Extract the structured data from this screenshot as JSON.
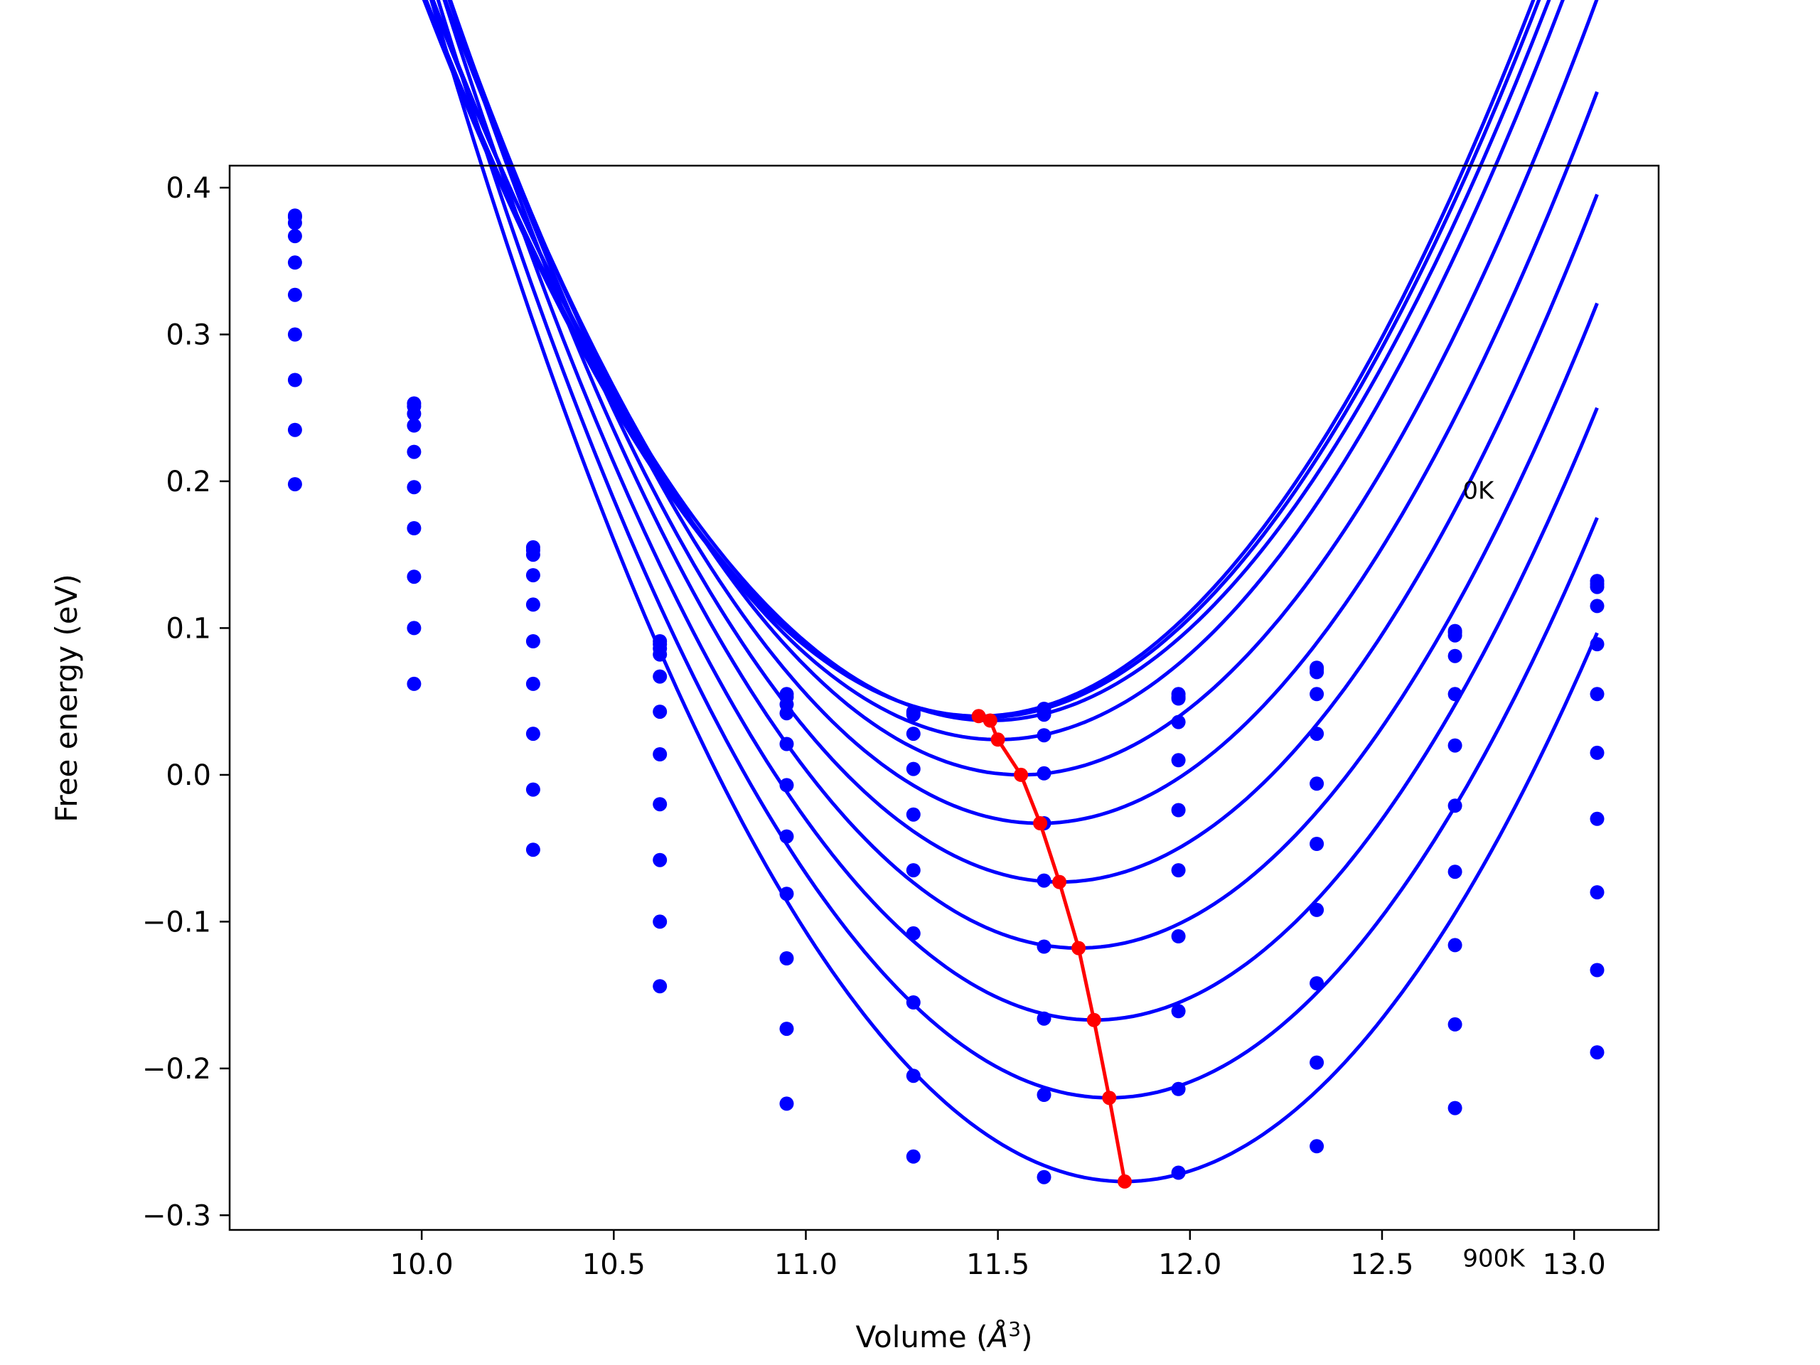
{
  "chart_data": {
    "type": "line",
    "title": "",
    "xlabel": "Volume (",
    "xlabel_symbol": "Å",
    "xlabel_exp": "3",
    "xlabel_close": ")",
    "ylabel": "Free energy (eV)",
    "xlim": [
      9.5,
      13.22
    ],
    "ylim": [
      -0.31,
      0.415
    ],
    "xticks": [
      10.0,
      10.5,
      11.0,
      11.5,
      12.0,
      12.5,
      13.0
    ],
    "xtick_labels": [
      "10.0",
      "10.5",
      "11.0",
      "11.5",
      "12.0",
      "12.5",
      "13.0"
    ],
    "yticks": [
      -0.3,
      -0.2,
      -0.1,
      0.0,
      0.1,
      0.2,
      0.3,
      0.4
    ],
    "ytick_labels": [
      "−0.3",
      "−0.2",
      "−0.1",
      "0.0",
      "0.1",
      "0.2",
      "0.3",
      "0.4"
    ],
    "grid": false,
    "legend": "none",
    "colors": {
      "curves": "#0000ff",
      "minima": "#ff0000"
    },
    "annotations": [
      {
        "text": "0K",
        "x": 12.71,
        "y": 0.188
      },
      {
        "text": "900K",
        "x": 12.71,
        "y": -0.335
      }
    ],
    "x": [
      9.67,
      9.98,
      10.29,
      10.62,
      10.95,
      11.28,
      11.62,
      11.97,
      12.33,
      12.69,
      13.06
    ],
    "series": [
      {
        "values": [
          0.38,
          0.253,
          0.155,
          0.091,
          0.055,
          0.043,
          0.045,
          0.055,
          0.073,
          0.098,
          0.132
        ],
        "fit": {
          "a": 0.234,
          "v0": 11.45,
          "e0": 0.04
        }
      },
      {
        "values": [
          0.381,
          0.251,
          0.153,
          0.089,
          0.053,
          0.042,
          0.043,
          0.053,
          0.072,
          0.097,
          0.13
        ],
        "fit": {
          "a": 0.233,
          "v0": 11.46,
          "e0": 0.039
        }
      },
      {
        "values": [
          0.376,
          0.246,
          0.15,
          0.086,
          0.048,
          0.041,
          0.041,
          0.052,
          0.07,
          0.095,
          0.128
        ],
        "fit": {
          "a": 0.232,
          "v0": 11.48,
          "e0": 0.037
        }
      },
      {
        "values": [
          0.367,
          0.238,
          0.136,
          0.082,
          0.042,
          0.028,
          0.027,
          0.036,
          0.055,
          0.081,
          0.115
        ],
        "fit": {
          "a": 0.233,
          "v0": 11.5,
          "e0": 0.024
        }
      },
      {
        "values": [
          0.349,
          0.22,
          0.116,
          0.067,
          0.021,
          0.004,
          0.001,
          0.01,
          0.028,
          0.055,
          0.089
        ],
        "fit": {
          "a": 0.235,
          "v0": 11.56,
          "e0": 0.0
        }
      },
      {
        "values": [
          0.327,
          0.196,
          0.091,
          0.043,
          -0.007,
          -0.027,
          -0.033,
          -0.024,
          -0.006,
          0.02,
          0.055
        ],
        "fit": {
          "a": 0.237,
          "v0": 11.61,
          "e0": -0.033
        }
      },
      {
        "values": [
          0.3,
          0.168,
          0.062,
          0.014,
          -0.042,
          -0.065,
          -0.072,
          -0.065,
          -0.047,
          -0.021,
          0.015
        ],
        "fit": {
          "a": 0.239,
          "v0": 11.66,
          "e0": -0.073
        }
      },
      {
        "values": [
          0.269,
          0.135,
          0.028,
          -0.02,
          -0.081,
          -0.108,
          -0.117,
          -0.11,
          -0.092,
          -0.066,
          -0.03
        ],
        "fit": {
          "a": 0.241,
          "v0": 11.71,
          "e0": -0.118
        }
      },
      {
        "values": [
          0.235,
          0.1,
          -0.01,
          -0.058,
          -0.125,
          -0.155,
          -0.166,
          -0.161,
          -0.142,
          -0.116,
          -0.08
        ],
        "fit": {
          "a": 0.243,
          "v0": 11.75,
          "e0": -0.167
        }
      },
      {
        "values": [
          0.198,
          0.062,
          -0.051,
          -0.1,
          -0.173,
          -0.205,
          -0.218,
          -0.214,
          -0.196,
          -0.17,
          -0.133
        ],
        "fit": {
          "a": 0.245,
          "v0": 11.79,
          "e0": -0.22
        }
      },
      {
        "values": [
          null,
          null,
          null,
          -0.144,
          -0.224,
          -0.26,
          -0.274,
          -0.271,
          -0.253,
          -0.227,
          -0.189
        ],
        "fit": {
          "a": 0.247,
          "v0": 11.83,
          "e0": -0.277
        }
      }
    ],
    "minima": {
      "x": [
        11.45,
        11.48,
        11.5,
        11.56,
        11.61,
        11.66,
        11.71,
        11.75,
        11.79,
        11.83
      ],
      "y": [
        0.04,
        0.037,
        0.024,
        0.0,
        -0.033,
        -0.073,
        -0.118,
        -0.167,
        -0.22,
        -0.277
      ]
    }
  }
}
